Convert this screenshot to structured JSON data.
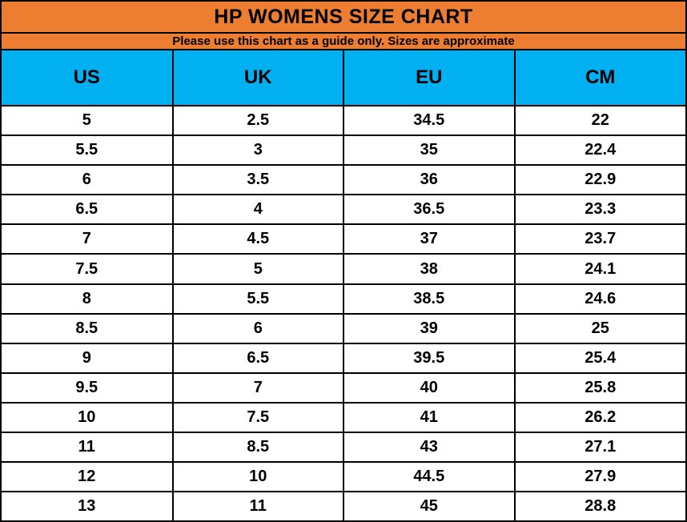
{
  "title": "HP WOMENS SIZE CHART",
  "subtitle": "Please use this chart as a guide only. Sizes are approximate",
  "colors": {
    "header_orange": "#ED7D31",
    "header_blue": "#00B0F0",
    "border_black": "#000000",
    "row_white": "#FFFFFF",
    "text_black": "#000000"
  },
  "columns": [
    "US",
    "UK",
    "EU",
    "CM"
  ],
  "rows": [
    [
      "5",
      "2.5",
      "34.5",
      "22"
    ],
    [
      "5.5",
      "3",
      "35",
      "22.4"
    ],
    [
      "6",
      "3.5",
      "36",
      "22.9"
    ],
    [
      "6.5",
      "4",
      "36.5",
      "23.3"
    ],
    [
      "7",
      "4.5",
      "37",
      "23.7"
    ],
    [
      "7.5",
      "5",
      "38",
      "24.1"
    ],
    [
      "8",
      "5.5",
      "38.5",
      "24.6"
    ],
    [
      "8.5",
      "6",
      "39",
      "25"
    ],
    [
      "9",
      "6.5",
      "39.5",
      "25.4"
    ],
    [
      "9.5",
      "7",
      "40",
      "25.8"
    ],
    [
      "10",
      "7.5",
      "41",
      "26.2"
    ],
    [
      "11",
      "8.5",
      "43",
      "27.1"
    ],
    [
      "12",
      "10",
      "44.5",
      "27.9"
    ],
    [
      "13",
      "11",
      "45",
      "28.8"
    ]
  ],
  "chart_data": {
    "type": "table",
    "title": "HP WOMENS SIZE CHART",
    "subtitle": "Please use this chart as a guide only. Sizes are approximate",
    "columns": [
      "US",
      "UK",
      "EU",
      "CM"
    ],
    "rows": [
      [
        5,
        2.5,
        34.5,
        22
      ],
      [
        5.5,
        3,
        35,
        22.4
      ],
      [
        6,
        3.5,
        36,
        22.9
      ],
      [
        6.5,
        4,
        36.5,
        23.3
      ],
      [
        7,
        4.5,
        37,
        23.7
      ],
      [
        7.5,
        5,
        38,
        24.1
      ],
      [
        8,
        5.5,
        38.5,
        24.6
      ],
      [
        8.5,
        6,
        39,
        25
      ],
      [
        9,
        6.5,
        39.5,
        25.4
      ],
      [
        9.5,
        7,
        40,
        25.8
      ],
      [
        10,
        7.5,
        41,
        26.2
      ],
      [
        11,
        8.5,
        43,
        27.1
      ],
      [
        12,
        10,
        44.5,
        27.9
      ],
      [
        13,
        11,
        45,
        28.8
      ]
    ]
  }
}
